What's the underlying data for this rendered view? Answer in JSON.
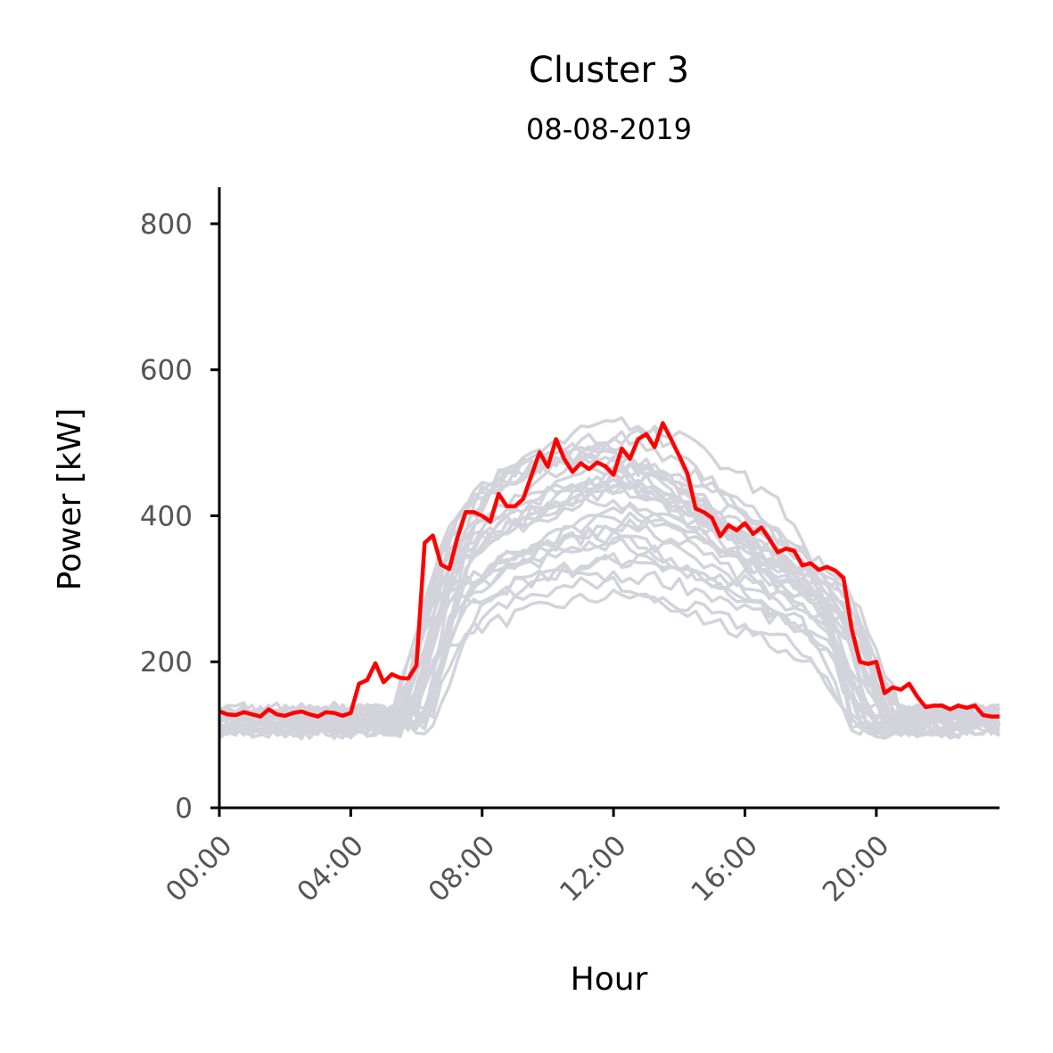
{
  "chart_data": {
    "type": "line",
    "title": "Cluster 3",
    "subtitle": "08-08-2019",
    "xlabel": "Hour",
    "ylabel": "Power [kW]",
    "xlim": [
      0,
      23.75
    ],
    "ylim": [
      0,
      850
    ],
    "x_ticks": [
      0,
      4,
      8,
      12,
      16,
      20
    ],
    "x_tick_labels": [
      "00:00",
      "04:00",
      "08:00",
      "12:00",
      "16:00",
      "20:00"
    ],
    "y_ticks": [
      0,
      200,
      400,
      600,
      800
    ],
    "y_tick_labels": [
      "0",
      "200",
      "400",
      "600",
      "800"
    ],
    "grid": false,
    "colors": {
      "highlight": "#ff0000",
      "background_series": "#d3d3dc",
      "axis": "#000000"
    },
    "highlight_series": {
      "x": [
        0,
        0.25,
        0.5,
        0.75,
        1,
        1.25,
        1.5,
        1.75,
        2,
        2.25,
        2.5,
        2.75,
        3,
        3.25,
        3.5,
        3.75,
        4,
        4.25,
        4.5,
        4.75,
        5,
        5.25,
        5.5,
        5.75,
        6,
        6.25,
        6.5,
        6.75,
        7,
        7.25,
        7.5,
        7.75,
        8,
        8.25,
        8.5,
        8.75,
        9,
        9.25,
        9.5,
        9.75,
        10,
        10.25,
        10.5,
        10.75,
        11,
        11.25,
        11.5,
        11.75,
        12,
        12.25,
        12.5,
        12.75,
        13,
        13.25,
        13.5,
        13.75,
        14,
        14.25,
        14.5,
        14.75,
        15,
        15.25,
        15.5,
        15.75,
        16,
        16.25,
        16.5,
        16.75,
        17,
        17.25,
        17.5,
        17.75,
        18,
        18.25,
        18.5,
        18.75,
        19,
        19.25,
        19.5,
        19.75,
        20,
        20.25,
        20.5,
        20.75,
        21,
        21.25,
        21.5,
        21.75,
        22,
        22.25,
        22.5,
        22.75,
        23,
        23.25,
        23.5,
        23.75
      ],
      "values": [
        132,
        128,
        127,
        131,
        128,
        125,
        135,
        128,
        126,
        130,
        132,
        128,
        125,
        131,
        130,
        126,
        130,
        170,
        175,
        198,
        172,
        183,
        178,
        177,
        195,
        363,
        373,
        333,
        327,
        370,
        405,
        405,
        400,
        392,
        430,
        413,
        413,
        423,
        455,
        487,
        467,
        505,
        478,
        460,
        472,
        464,
        473,
        468,
        456,
        492,
        478,
        505,
        512,
        494,
        527,
        505,
        482,
        458,
        410,
        405,
        397,
        372,
        387,
        380,
        390,
        375,
        384,
        368,
        350,
        355,
        352,
        332,
        335,
        326,
        330,
        325,
        315,
        245,
        200,
        197,
        200,
        157,
        165,
        162,
        170,
        152,
        138,
        140,
        140,
        135,
        140,
        137,
        140,
        127,
        125,
        125
      ]
    },
    "background_series_count": 30
  }
}
